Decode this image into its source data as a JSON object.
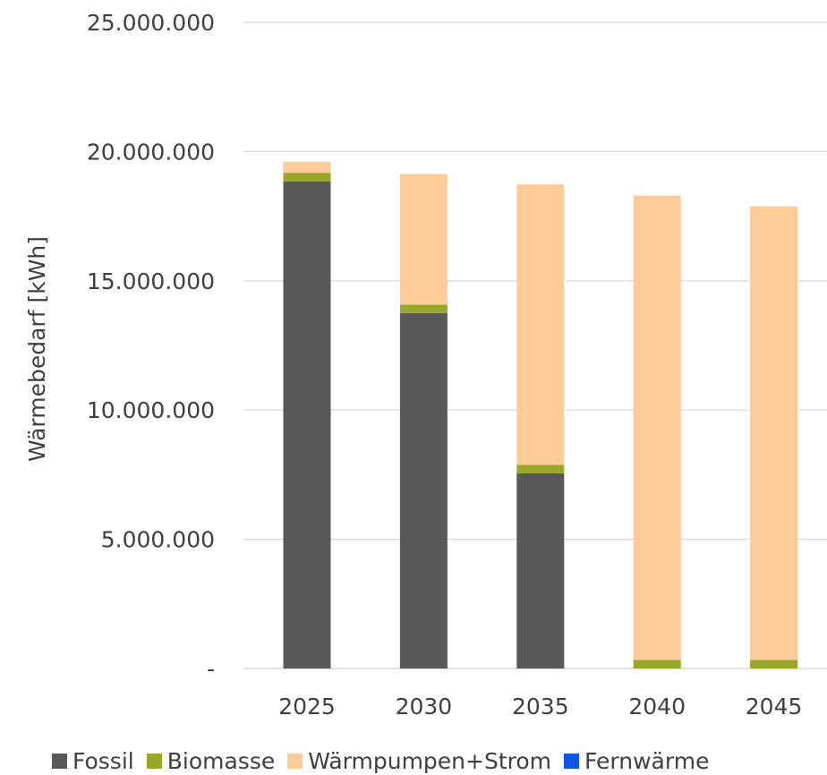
{
  "chart_data": {
    "type": "bar",
    "stacked": true,
    "title": "",
    "xlabel": "",
    "ylabel": "Wärmebedarf [kWh]",
    "ylim": [
      0,
      25000000
    ],
    "yticks": [
      0,
      5000000,
      10000000,
      15000000,
      20000000,
      25000000
    ],
    "ytick_labels": [
      "-",
      "5.000.000",
      "10.000.000",
      "15.000.000",
      "20.000.000",
      "25.000.000"
    ],
    "grid": true,
    "legend_position": "bottom",
    "categories": [
      "2025",
      "2030",
      "2035",
      "2040",
      "2045"
    ],
    "series": [
      {
        "name": "Fossil",
        "color": "#595959",
        "values": [
          18850000,
          13750000,
          7550000,
          0,
          0
        ]
      },
      {
        "name": "Biomasse",
        "color": "#9aa82a",
        "values": [
          330000,
          330000,
          330000,
          330000,
          330000
        ]
      },
      {
        "name": "Wärmpumpen+Strom",
        "color": "#fdcb98",
        "values": [
          430000,
          5050000,
          10850000,
          17970000,
          17550000
        ]
      },
      {
        "name": "Fernwärme",
        "color": "#1155e6",
        "values": [
          0,
          0,
          0,
          0,
          0
        ]
      }
    ]
  }
}
